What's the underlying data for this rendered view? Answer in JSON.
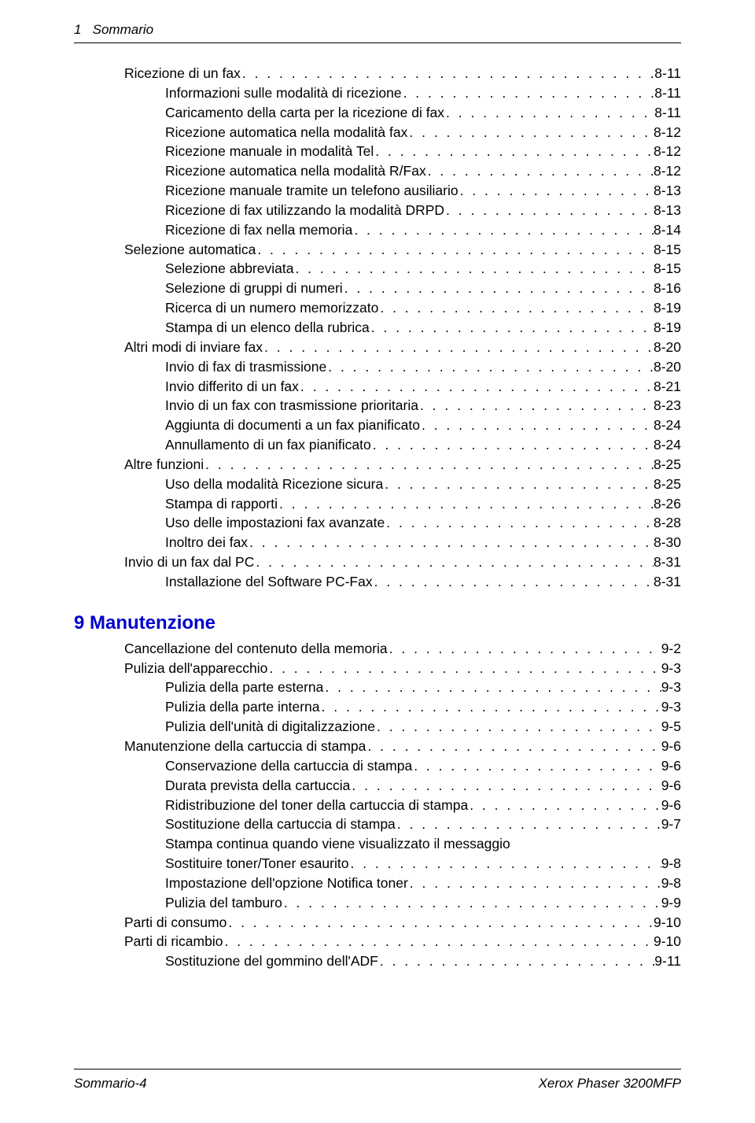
{
  "header": {
    "chapter_num": "1",
    "chapter_label": "Sommario"
  },
  "footer": {
    "page": "Sommario-4",
    "product": "Xerox Phaser 3200MFP"
  },
  "colors": {
    "link": "#0000cc",
    "text": "#000000",
    "rule": "#000000",
    "background": "#ffffff"
  },
  "typography": {
    "body_fontsize_pt": 13,
    "heading_fontsize_pt": 18,
    "header_footer_fontsize_pt": 13,
    "font_family": "Arial"
  },
  "toc": {
    "section_a": [
      {
        "level": 2,
        "label": "Ricezione di un fax",
        "page": "8-11"
      },
      {
        "level": 3,
        "label": "Informazioni sulle modalità di ricezione",
        "page": "8-11"
      },
      {
        "level": 3,
        "label": "Caricamento della carta per la ricezione di fax",
        "page": "8-11"
      },
      {
        "level": 3,
        "label": "Ricezione automatica nella modalità fax",
        "page": "8-12"
      },
      {
        "level": 3,
        "label": "Ricezione manuale in modalità Tel",
        "page": "8-12"
      },
      {
        "level": 3,
        "label": "Ricezione automatica nella modalità R/Fax",
        "page": "8-12"
      },
      {
        "level": 3,
        "label": "Ricezione manuale tramite un telefono ausiliario",
        "page": "8-13"
      },
      {
        "level": 3,
        "label": "Ricezione di fax utilizzando la modalità DRPD",
        "page": "8-13"
      },
      {
        "level": 3,
        "label": "Ricezione di fax nella memoria",
        "page": "8-14"
      },
      {
        "level": 2,
        "label": "Selezione automatica",
        "page": "8-15"
      },
      {
        "level": 3,
        "label": "Selezione abbreviata",
        "page": "8-15"
      },
      {
        "level": 3,
        "label": "Selezione di gruppi di numeri",
        "page": "8-16"
      },
      {
        "level": 3,
        "label": "Ricerca di un numero memorizzato",
        "page": "8-19"
      },
      {
        "level": 3,
        "label": "Stampa di un elenco della rubrica",
        "page": "8-19"
      },
      {
        "level": 2,
        "label": "Altri modi di inviare fax",
        "page": "8-20"
      },
      {
        "level": 3,
        "label": "Invio di fax di trasmissione",
        "page": "8-20"
      },
      {
        "level": 3,
        "label": "Invio differito di un fax",
        "page": "8-21"
      },
      {
        "level": 3,
        "label": "Invio di un fax con trasmissione prioritaria",
        "page": "8-23"
      },
      {
        "level": 3,
        "label": "Aggiunta di documenti a un fax pianificato",
        "page": "8-24"
      },
      {
        "level": 3,
        "label": "Annullamento di un fax pianificato",
        "page": "8-24"
      },
      {
        "level": 2,
        "label": "Altre funzioni",
        "page": "8-25"
      },
      {
        "level": 3,
        "label": "Uso della modalità Ricezione sicura",
        "page": "8-25"
      },
      {
        "level": 3,
        "label": "Stampa di rapporti",
        "page": "8-26"
      },
      {
        "level": 3,
        "label": "Uso delle impostazioni fax avanzate",
        "page": "8-28"
      },
      {
        "level": 3,
        "label": "Inoltro dei fax",
        "page": "8-30"
      },
      {
        "level": 2,
        "label": "Invio di un fax dal PC",
        "page": "8-31"
      },
      {
        "level": 3,
        "label": "Installazione del Software PC-Fax",
        "page": "8-31"
      }
    ],
    "chapter9": {
      "number": "9",
      "title": "Manutenzione"
    },
    "section_b": [
      {
        "level": 2,
        "label": "Cancellazione del contenuto della memoria",
        "page": "9-2"
      },
      {
        "level": 2,
        "label": "Pulizia dell'apparecchio",
        "page": "9-3"
      },
      {
        "level": 3,
        "label": "Pulizia della parte esterna",
        "page": "9-3"
      },
      {
        "level": 3,
        "label": "Pulizia della parte interna",
        "page": "9-3"
      },
      {
        "level": 3,
        "label": "Pulizia dell'unità di digitalizzazione",
        "page": "9-5"
      },
      {
        "level": 2,
        "label": "Manutenzione della cartuccia di stampa",
        "page": "9-6"
      },
      {
        "level": 3,
        "label": "Conservazione della cartuccia di stampa",
        "page": "9-6"
      },
      {
        "level": 3,
        "label": "Durata prevista della cartuccia",
        "page": "9-6"
      },
      {
        "level": 3,
        "label": "Ridistribuzione del toner della cartuccia di stampa",
        "page": "9-6"
      },
      {
        "level": 3,
        "label": "Sostituzione della cartuccia di stampa",
        "page": "9-7"
      },
      {
        "level": 3,
        "label": "Stampa continua quando viene visualizzato il messaggio",
        "cont": "Sostituire toner/Toner esaurito",
        "page": "9-8"
      },
      {
        "level": 3,
        "label": "Impostazione dell'opzione Notifica toner",
        "page": "9-8"
      },
      {
        "level": 3,
        "label": "Pulizia del tamburo",
        "page": "9-9"
      },
      {
        "level": 2,
        "label": "Parti di consumo",
        "page": "9-10"
      },
      {
        "level": 2,
        "label": "Parti di ricambio",
        "page": "9-10"
      },
      {
        "level": 3,
        "label": "Sostituzione del gommino dell'ADF",
        "page": "9-11"
      }
    ]
  }
}
